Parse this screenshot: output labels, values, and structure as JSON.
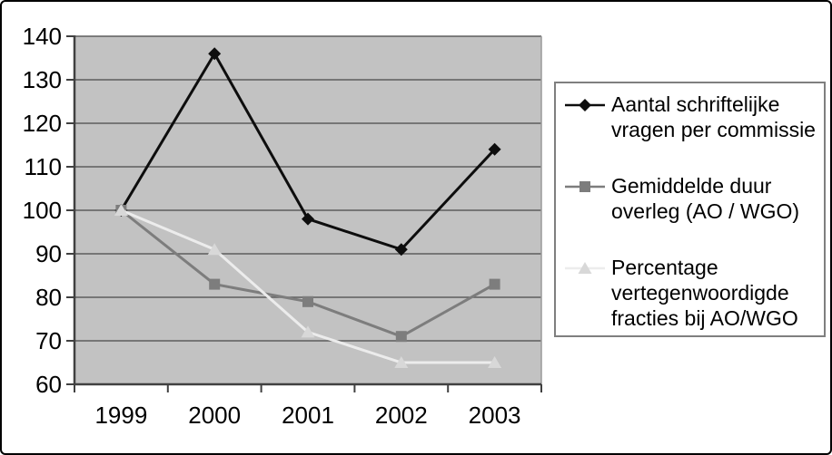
{
  "chart_data": {
    "type": "line",
    "title": "",
    "xlabel": "",
    "ylabel": "",
    "x_labels": [
      "1999",
      "2000",
      "2001",
      "2002",
      "2003"
    ],
    "yticks": [
      60,
      70,
      80,
      90,
      100,
      110,
      120,
      130,
      140
    ],
    "ylim": [
      60,
      140
    ],
    "grid": true,
    "legend_position": "right",
    "plot_bg_color": "#c2c2c2",
    "grid_color": "#5c5c5c",
    "axis_color": "#404040",
    "series": [
      {
        "name": "Aantal schriftelijke vragen per commissie",
        "marker": "diamond",
        "color": "#0d0d0d",
        "marker_color": "#0d0d0d",
        "values": [
          100,
          136,
          98,
          91,
          114
        ]
      },
      {
        "name": "Gemiddelde duur overleg (AO / WGO)",
        "marker": "square",
        "color": "#7d7d7d",
        "marker_color": "#7d7d7d",
        "values": [
          100,
          83,
          79,
          71,
          83
        ]
      },
      {
        "name": "Percentage vertegenwoordigde fracties bij AO/WGO",
        "marker": "triangle",
        "color": "#ececec",
        "marker_color": "#d8d8d8",
        "values": [
          100,
          91,
          72,
          65,
          65
        ]
      }
    ]
  }
}
